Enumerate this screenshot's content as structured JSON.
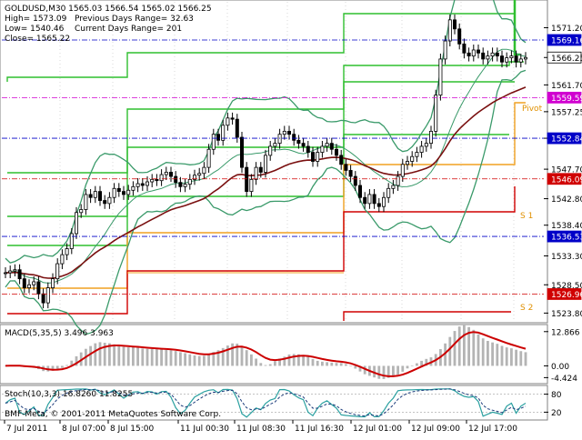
{
  "header": {
    "symbol_line": "GOLDUSD,M30  1565.03 1566.54 1565.02 1566.25",
    "high": "High= 1573.09",
    "prev_range": "Previous Days Range= 32.63",
    "low": "Low= 1540.46",
    "cur_range": "Current Days Range= 201",
    "close": "Close= 1565.22"
  },
  "price_axis": {
    "ticks": [
      "1571.20",
      "1566.25",
      "1561.70",
      "1557.25",
      "1552.84",
      "1547.70",
      "1542.80",
      "1538.40",
      "1533.30",
      "1528.50",
      "1523.80"
    ],
    "tick_values": [
      1571.2,
      1566.25,
      1561.7,
      1557.25,
      1552.84,
      1547.7,
      1542.8,
      1538.4,
      1533.3,
      1528.5,
      1523.8
    ],
    "min": 1522.5,
    "max": 1575.5
  },
  "levels": [
    {
      "value": 1569.16,
      "text": "1569.16",
      "bg": "#0000c8",
      "fg": "#ffffff",
      "style": "dashdot"
    },
    {
      "value": 1566.25,
      "text": "1566.25",
      "bg": "#ffffff",
      "fg": "#000000",
      "style": "none"
    },
    {
      "value": 1559.59,
      "text": "1559.59",
      "bg": "#d000d0",
      "fg": "#ffffff",
      "style": "dashdot"
    },
    {
      "value": 1552.84,
      "text": "1552.84",
      "bg": "#0000c8",
      "fg": "#ffffff",
      "style": "dashdot"
    },
    {
      "value": 1546.09,
      "text": "1546.09",
      "bg": "#d00000",
      "fg": "#ffffff",
      "style": "dashdot"
    },
    {
      "value": 1536.53,
      "text": "1536.53",
      "bg": "#0000c8",
      "fg": "#ffffff",
      "style": "dashdot"
    },
    {
      "value": 1526.96,
      "text": "1526.96",
      "bg": "#d00000",
      "fg": "#ffffff",
      "style": "dashdot"
    }
  ],
  "labels": {
    "pivot": "Pivot",
    "s1": "S 1",
    "s2": "S 2"
  },
  "macd": {
    "title": "MACD(5,35,5) 3.496 3.963",
    "ticks": [
      "12.866",
      "0.00",
      "-4.424"
    ],
    "tick_values": [
      12.866,
      0,
      -4.424
    ],
    "min": -6,
    "max": 14.5
  },
  "stoch": {
    "title": "Stoch(10,3,3) 16.8260 11.8255",
    "ticks": [
      "80",
      "20"
    ],
    "tick_values": [
      80,
      20
    ]
  },
  "footer": {
    "credit": "BMF-Meta, © 2001-2011 MetaQuotes Software Corp."
  },
  "time_axis": [
    "7 Jul 2011",
    "8 Jul 07:00",
    "8 Jul 15:00",
    "11 Jul 00:30",
    "11 Jul 08:30",
    "11 Jul 16:30",
    "12 Jul 01:00",
    "12 Jul 09:00",
    "12 Jul 17:00"
  ],
  "chart_data": {
    "type": "line",
    "symbol": "GOLDUSD",
    "timeframe": "M30",
    "x_labels": [
      "7 Jul 2011",
      "8 Jul 07:00",
      "8 Jul 15:00",
      "11 Jul 00:30",
      "11 Jul 08:30",
      "11 Jul 16:30",
      "12 Jul 01:00",
      "12 Jul 09:00",
      "12 Jul 17:00"
    ],
    "series": [
      {
        "values": [
          1530.5,
          1530.8,
          1531.0,
          1529.5,
          1528.0,
          1528.5,
          1529.0,
          1527.0,
          1525.5,
          1528.0,
          1529.5,
          1532.0,
          1533.5,
          1534.5,
          1537.0,
          1540.5,
          1541.0,
          1543.5,
          1543.0,
          1544.0,
          1542.5,
          1542.0,
          1543.0,
          1544.5,
          1544.0,
          1543.5,
          1544.2,
          1544.8,
          1545.3,
          1545.0,
          1545.6,
          1546.0,
          1545.8,
          1546.8,
          1547.2,
          1546.5,
          1545.5,
          1544.8,
          1545.2,
          1546.0,
          1546.7,
          1547.0,
          1548.0,
          1551.0,
          1553.5,
          1552.5,
          1555.0,
          1556.2,
          1556.0,
          1553.0,
          1548.0,
          1544.0,
          1546.0,
          1548.0,
          1547.2,
          1550.0,
          1551.5,
          1552.0,
          1553.5,
          1554.0,
          1553.5,
          1552.5,
          1552.0,
          1551.5,
          1550.5,
          1549.0,
          1550.5,
          1551.5,
          1552.0,
          1551.0,
          1550.0,
          1548.5,
          1547.5,
          1546.5,
          1545.0,
          1543.0,
          1542.0,
          1543.5,
          1542.0,
          1541.5,
          1543.0,
          1544.5,
          1545.0,
          1546.5,
          1548.5,
          1549.0,
          1549.8,
          1550.5,
          1551.5,
          1552.0,
          1554.0,
          1560.0,
          1566.0,
          1569.0,
          1572.5,
          1571.0,
          1568.5,
          1567.0,
          1566.5,
          1567.5,
          1567.0,
          1566.0,
          1566.5,
          1567.0,
          1566.5,
          1565.5,
          1566.2,
          1566.5,
          1565.5,
          1566.0,
          1566.25
        ]
      }
    ],
    "ylim": [
      1522.5,
      1575.5
    ]
  }
}
